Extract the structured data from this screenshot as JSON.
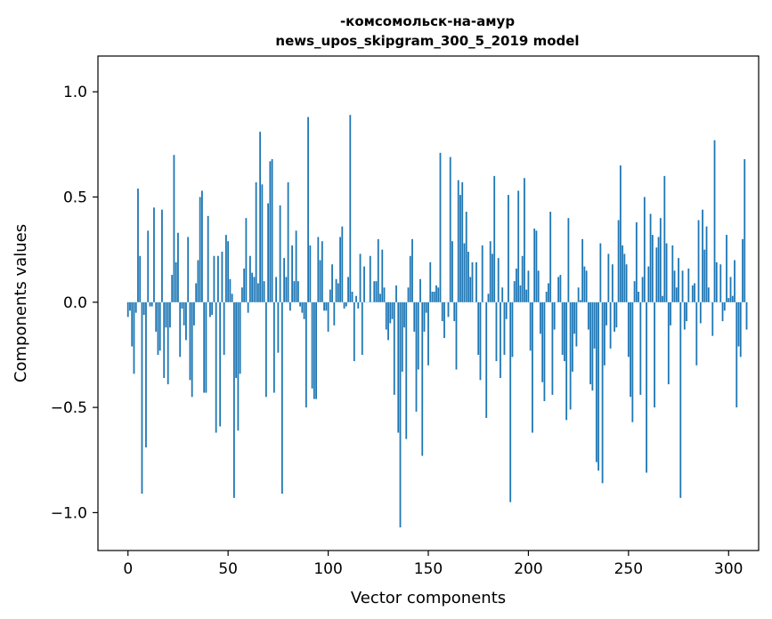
{
  "chart_data": {
    "type": "bar",
    "title": "-комсомольск-на-амур",
    "subtitle": "news_upos_skipgram_300_5_2019 model",
    "xlabel": "Vector components",
    "ylabel": "Components values",
    "xlim": [
      -15,
      315
    ],
    "ylim": [
      -1.18,
      1.17
    ],
    "xticks": [
      0,
      50,
      100,
      150,
      200,
      250,
      300
    ],
    "yticks": [
      -1.0,
      -0.5,
      0.0,
      0.5,
      1.0
    ],
    "ytick_labels": [
      "−1.0",
      "−0.5",
      "0.0",
      "0.5",
      "1.0"
    ],
    "grid": false,
    "bar_color": "#1f77b4",
    "values": [
      -0.07,
      -0.04,
      -0.21,
      -0.34,
      -0.05,
      0.54,
      0.22,
      -0.91,
      -0.06,
      -0.69,
      0.34,
      -0.02,
      -0.02,
      0.45,
      -0.14,
      -0.25,
      -0.23,
      0.44,
      -0.36,
      -0.12,
      -0.39,
      -0.12,
      0.13,
      0.7,
      0.19,
      0.33,
      -0.26,
      -0.03,
      -0.11,
      -0.18,
      0.31,
      -0.37,
      -0.45,
      -0.11,
      0.09,
      0.2,
      0.5,
      0.53,
      -0.43,
      -0.43,
      0.41,
      -0.07,
      -0.06,
      0.22,
      -0.62,
      0.22,
      -0.59,
      0.24,
      -0.25,
      0.32,
      0.29,
      0.11,
      0.04,
      -0.93,
      -0.36,
      -0.61,
      -0.34,
      0.07,
      0.16,
      0.4,
      -0.05,
      0.22,
      0.14,
      0.12,
      0.57,
      0.09,
      0.81,
      0.56,
      0.1,
      -0.45,
      0.47,
      0.67,
      0.68,
      -0.43,
      0.12,
      -0.24,
      0.46,
      -0.91,
      0.21,
      0.12,
      0.57,
      -0.04,
      0.27,
      0.1,
      0.34,
      0.1,
      -0.02,
      -0.05,
      -0.08,
      -0.5,
      0.88,
      0.27,
      -0.41,
      -0.46,
      -0.46,
      0.31,
      0.2,
      0.29,
      -0.04,
      -0.04,
      -0.14,
      0.06,
      0.18,
      -0.11,
      0.11,
      0.09,
      0.31,
      0.36,
      -0.03,
      -0.02,
      0.12,
      0.89,
      0.05,
      -0.28,
      0.03,
      -0.03,
      0.23,
      -0.25,
      0.17,
      0.0,
      0.0,
      0.22,
      0.0,
      0.1,
      0.1,
      0.3,
      0.04,
      0.25,
      0.07,
      -0.13,
      -0.18,
      -0.1,
      -0.08,
      -0.44,
      0.08,
      -0.62,
      -1.07,
      -0.33,
      -0.12,
      -0.65,
      0.07,
      0.22,
      0.3,
      -0.14,
      -0.52,
      -0.32,
      0.11,
      -0.73,
      -0.14,
      -0.05,
      -0.3,
      0.19,
      0.05,
      0.05,
      0.08,
      0.07,
      0.71,
      -0.09,
      -0.17,
      0.0,
      -0.07,
      0.69,
      0.29,
      -0.09,
      -0.32,
      0.58,
      0.51,
      0.57,
      0.28,
      0.43,
      0.24,
      0.12,
      0.19,
      0.0,
      0.19,
      -0.25,
      -0.37,
      0.27,
      0.0,
      -0.55,
      0.04,
      0.29,
      0.23,
      0.6,
      -0.28,
      0.21,
      -0.36,
      0.07,
      -0.25,
      -0.08,
      0.51,
      -0.95,
      -0.26,
      0.1,
      0.16,
      0.53,
      0.08,
      0.22,
      0.59,
      0.06,
      0.15,
      -0.23,
      -0.62,
      0.35,
      0.34,
      0.15,
      -0.15,
      -0.38,
      -0.47,
      0.05,
      0.09,
      0.43,
      -0.44,
      -0.13,
      0.0,
      0.12,
      0.13,
      -0.25,
      -0.28,
      -0.56,
      0.4,
      -0.51,
      -0.33,
      -0.15,
      -0.21,
      0.07,
      0.01,
      0.3,
      0.17,
      0.15,
      -0.13,
      -0.39,
      -0.42,
      -0.22,
      -0.76,
      -0.8,
      0.28,
      -0.86,
      -0.3,
      -0.11,
      0.23,
      -0.22,
      0.18,
      -0.14,
      -0.12,
      0.39,
      0.65,
      0.27,
      0.23,
      0.18,
      -0.26,
      -0.45,
      -0.57,
      0.1,
      0.38,
      0.05,
      -0.44,
      0.12,
      0.5,
      -0.81,
      0.17,
      0.42,
      0.32,
      -0.5,
      0.26,
      0.31,
      0.4,
      0.03,
      0.6,
      0.28,
      -0.39,
      -0.11,
      0.27,
      0.15,
      0.07,
      0.21,
      -0.93,
      0.15,
      -0.13,
      -0.09,
      0.16,
      0.0,
      0.08,
      0.09,
      -0.3,
      0.39,
      -0.1,
      0.44,
      0.25,
      0.36,
      0.07,
      0.0,
      -0.16,
      0.77,
      0.19,
      0.0,
      0.18,
      -0.09,
      -0.04,
      0.32,
      0.02,
      0.12,
      0.03,
      0.2,
      -0.5,
      -0.21,
      -0.26,
      0.3,
      0.68,
      -0.13
    ]
  }
}
